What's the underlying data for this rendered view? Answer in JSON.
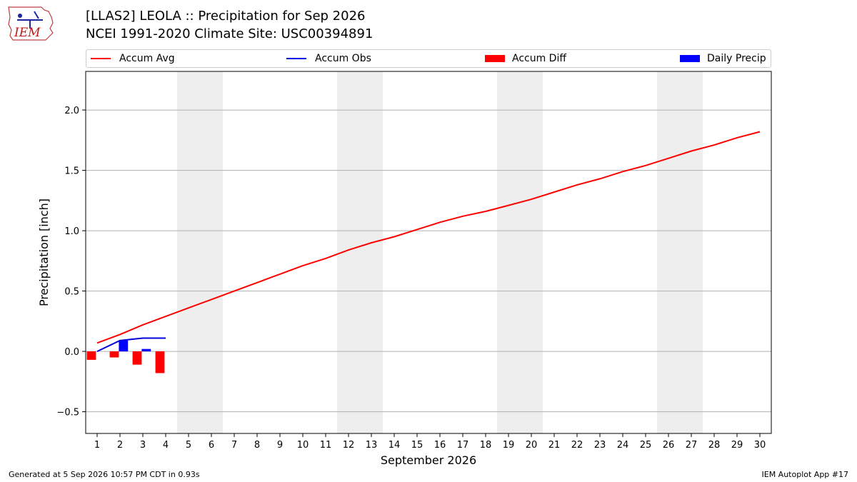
{
  "header": {
    "logo_text": "IEM",
    "title_line1": "[LLAS2] LEOLA :: Precipitation for Sep 2026",
    "title_line2": "NCEI 1991-2020 Climate Site: USC00394891"
  },
  "colors": {
    "accum_avg": "#ff0000",
    "accum_obs": "#0000dd",
    "accum_diff": "#ff0000",
    "daily_precip": "#0000ff",
    "weekend_shade": "#eeeeee",
    "grid": "#b0b0b0"
  },
  "chart_data": {
    "type": "line",
    "xlabel": "September 2026",
    "ylabel": "Precipitation [inch]",
    "xlim": [
      0.5,
      30.5
    ],
    "ylim": [
      -0.68,
      2.32
    ],
    "yticks": [
      -0.5,
      0.0,
      0.5,
      1.0,
      1.5,
      2.0
    ],
    "ytick_labels": [
      "−0.5",
      "0.0",
      "0.5",
      "1.0",
      "1.5",
      "2.0"
    ],
    "xticks": [
      1,
      2,
      3,
      4,
      5,
      6,
      7,
      8,
      9,
      10,
      11,
      12,
      13,
      14,
      15,
      16,
      17,
      18,
      19,
      20,
      21,
      22,
      23,
      24,
      25,
      26,
      27,
      28,
      29,
      30
    ],
    "grid": "horizontal",
    "legend_position": "top",
    "weekend_shading": [
      [
        4.5,
        6.5
      ],
      [
        11.5,
        13.5
      ],
      [
        18.5,
        20.5
      ],
      [
        25.5,
        27.5
      ]
    ],
    "legend": [
      {
        "name": "Accum Avg",
        "kind": "line",
        "color": "#ff0000"
      },
      {
        "name": "Accum Obs",
        "kind": "line",
        "color": "#0000dd"
      },
      {
        "name": "Accum Diff",
        "kind": "bar",
        "color": "#ff0000"
      },
      {
        "name": "Daily Precip",
        "kind": "bar",
        "color": "#0000ff"
      }
    ],
    "series": [
      {
        "name": "Accum Avg",
        "type": "line",
        "x": [
          1,
          2,
          3,
          4,
          5,
          6,
          7,
          8,
          9,
          10,
          11,
          12,
          13,
          14,
          15,
          16,
          17,
          18,
          19,
          20,
          21,
          22,
          23,
          24,
          25,
          26,
          27,
          28,
          29,
          30
        ],
        "values": [
          0.07,
          0.14,
          0.22,
          0.29,
          0.36,
          0.43,
          0.5,
          0.57,
          0.64,
          0.71,
          0.77,
          0.84,
          0.9,
          0.95,
          1.01,
          1.07,
          1.12,
          1.16,
          1.21,
          1.26,
          1.32,
          1.38,
          1.43,
          1.49,
          1.54,
          1.6,
          1.66,
          1.71,
          1.77,
          1.82
        ]
      },
      {
        "name": "Accum Obs",
        "type": "line",
        "x": [
          1,
          2,
          3,
          4
        ],
        "values": [
          0.0,
          0.09,
          0.11,
          0.11
        ]
      },
      {
        "name": "Accum Diff",
        "type": "bar",
        "x": [
          1,
          2,
          3,
          4
        ],
        "values": [
          -0.07,
          -0.05,
          -0.11,
          -0.18
        ]
      },
      {
        "name": "Daily Precip",
        "type": "bar",
        "x": [
          1,
          2,
          3,
          4
        ],
        "values": [
          0.0,
          0.09,
          0.02,
          0.0
        ]
      }
    ]
  },
  "footer": {
    "generated": "Generated at 5 Sep 2026 10:57 PM CDT in 0.93s",
    "app": "IEM Autoplot App #17"
  }
}
